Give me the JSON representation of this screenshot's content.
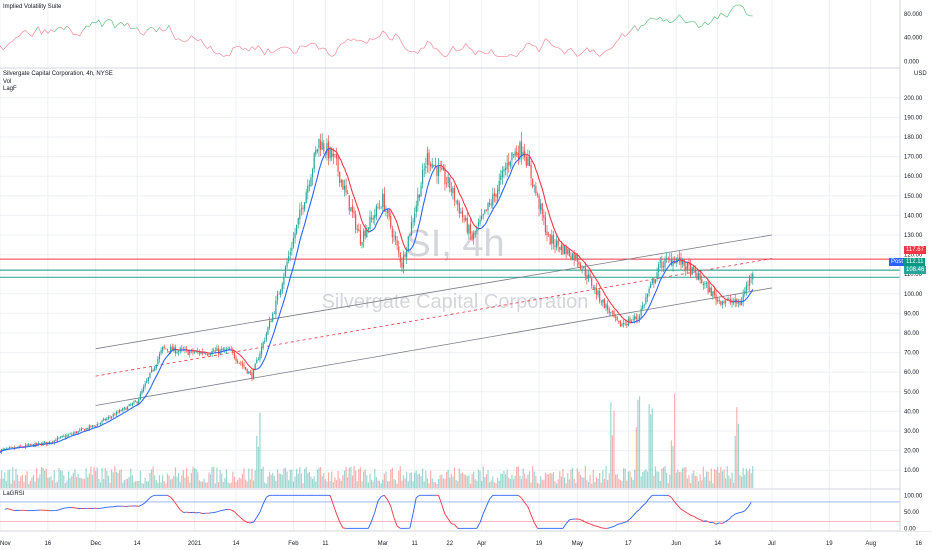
{
  "chart_data": [
    {
      "pane": "iv",
      "type": "line",
      "title": "Implied Volatility Suite",
      "yticks": [
        "80.000",
        "40.000",
        "0.000"
      ],
      "ylim": [
        -8,
        100
      ],
      "grid": true
    },
    {
      "pane": "price",
      "type": "candlestick",
      "title": "Silvergate Capital Corporation, 4h, NYSE",
      "legend_lines": [
        "Vol",
        "LagF"
      ],
      "symbol_watermark": "SI, 4h",
      "name_watermark": "Silvergate Capital Corporation",
      "currency": "USD",
      "yticks": [
        "200.00",
        "190.00",
        "180.00",
        "170.00",
        "160.00",
        "150.00",
        "140.00",
        "130.00",
        "120.00",
        "110.00",
        "100.00",
        "90.00",
        "80.00",
        "70.00",
        "60.00",
        "50.00",
        "40.00",
        "30.00",
        "20.00",
        "10.00"
      ],
      "ylim": [
        5,
        205
      ],
      "key_points": [
        {
          "x": "Nov 1",
          "y": 20
        },
        {
          "x": "Nov 16",
          "y": 24
        },
        {
          "x": "Dec 1",
          "y": 33
        },
        {
          "x": "Dec 14",
          "y": 45
        },
        {
          "x": "Dec 22",
          "y": 72
        },
        {
          "x": "Jan 1",
          "y": 70
        },
        {
          "x": "Jan 12",
          "y": 71
        },
        {
          "x": "Jan 19",
          "y": 58
        },
        {
          "x": "Jan 26",
          "y": 92
        },
        {
          "x": "Feb 3",
          "y": 140
        },
        {
          "x": "Feb 9",
          "y": 178
        },
        {
          "x": "Feb 14",
          "y": 168
        },
        {
          "x": "Feb 22",
          "y": 128
        },
        {
          "x": "Mar 1",
          "y": 148
        },
        {
          "x": "Mar 7",
          "y": 115
        },
        {
          "x": "Mar 15",
          "y": 170
        },
        {
          "x": "Mar 22",
          "y": 155
        },
        {
          "x": "Mar 29",
          "y": 128
        },
        {
          "x": "Apr 5",
          "y": 150
        },
        {
          "x": "Apr 10",
          "y": 170
        },
        {
          "x": "Apr 14",
          "y": 175
        },
        {
          "x": "Apr 22",
          "y": 128
        },
        {
          "x": "May 1",
          "y": 118
        },
        {
          "x": "May 8",
          "y": 98
        },
        {
          "x": "May 14",
          "y": 84
        },
        {
          "x": "May 20",
          "y": 88
        },
        {
          "x": "May 27",
          "y": 115
        },
        {
          "x": "Jun 1",
          "y": 118
        },
        {
          "x": "Jun 7",
          "y": 110
        },
        {
          "x": "Jun 14",
          "y": 97
        },
        {
          "x": "Jun 21",
          "y": 95
        },
        {
          "x": "Jun 25",
          "y": 112
        }
      ],
      "horizontal_levels": [
        {
          "label": "117.67",
          "value": 117.67,
          "color": "#f23645"
        },
        {
          "label": "112.11",
          "value": 112.11,
          "color": "#089981",
          "badge": "Post"
        },
        {
          "label": "108.46",
          "value": 108.46,
          "color": "#26a69a"
        }
      ],
      "channel": {
        "upper": [
          {
            "x": "Dec 1",
            "y": 72
          },
          {
            "x": "Jul 1",
            "y": 130
          }
        ],
        "mid": [
          {
            "x": "Dec 1",
            "y": 58
          },
          {
            "x": "Jul 1",
            "y": 118
          }
        ],
        "lower": [
          {
            "x": "Dec 1",
            "y": 43
          },
          {
            "x": "Jul 1",
            "y": 103
          }
        ]
      },
      "volume_spike_dates": [
        "Jan 21",
        "May 12",
        "May 20",
        "May 24",
        "May 31",
        "Jun 20"
      ],
      "grid": true
    },
    {
      "pane": "lagf",
      "type": "line",
      "title": "LaGRSI",
      "yticks": [
        "100.00",
        "50.00",
        "0.00"
      ],
      "ylim": [
        -5,
        110
      ],
      "levels": [
        80,
        20
      ],
      "grid": true
    }
  ],
  "xaxis": {
    "labels": [
      {
        "date": "Nov 1",
        "label": "Nov"
      },
      {
        "date": "Nov 16",
        "label": "16"
      },
      {
        "date": "Dec 1",
        "label": "Dec"
      },
      {
        "date": "Dec 14",
        "label": "14"
      },
      {
        "date": "Jan 1",
        "label": "2021"
      },
      {
        "date": "Jan 14",
        "label": "14"
      },
      {
        "date": "Feb 1",
        "label": "Feb"
      },
      {
        "date": "Feb 11",
        "label": "11"
      },
      {
        "date": "Mar 1",
        "label": "Mar"
      },
      {
        "date": "Mar 11",
        "label": "11"
      },
      {
        "date": "Mar 22",
        "label": "22"
      },
      {
        "date": "Apr 1",
        "label": "Apr"
      },
      {
        "date": "Apr 19",
        "label": "19"
      },
      {
        "date": "May 1",
        "label": "May"
      },
      {
        "date": "May 17",
        "label": "17"
      },
      {
        "date": "Jun 1",
        "label": "Jun"
      },
      {
        "date": "Jun 14",
        "label": "14"
      },
      {
        "date": "Jul 1",
        "label": "Jul"
      },
      {
        "date": "Jul 19",
        "label": "19"
      },
      {
        "date": "Aug 1",
        "label": "Aug"
      },
      {
        "date": "Aug 16",
        "label": "16"
      }
    ]
  },
  "colors": {
    "up": "#26a69a",
    "down": "#ef5350",
    "grid": "#eef0f4",
    "channel": "#787b86",
    "ma_blue": "#2962ff",
    "ma_red": "#f23645",
    "iv_red": "#f28b9a",
    "iv_green": "#5cc57a"
  }
}
